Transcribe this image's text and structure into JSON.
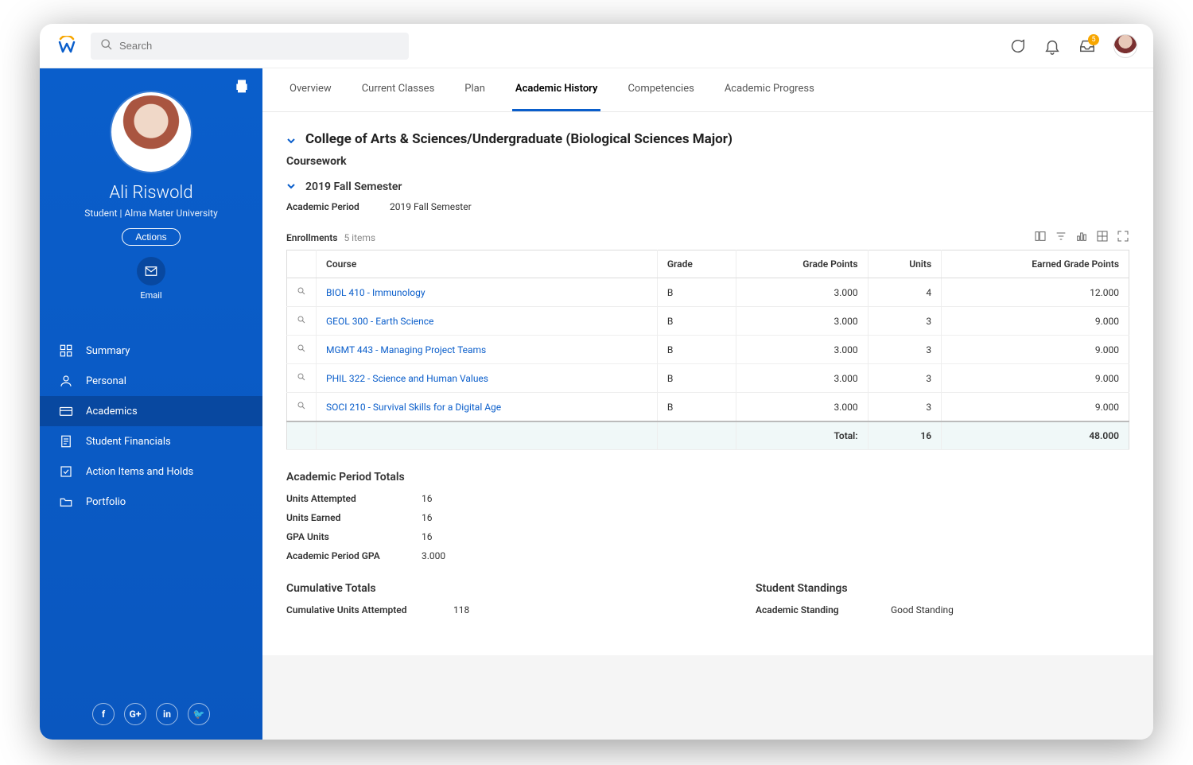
{
  "colors": {
    "sidebar_bg": "#0a5cc7",
    "sidebar_active": "#0848a0",
    "accent": "#0a5ecb",
    "badge": "#f7a600",
    "total_row_bg": "#f0f8f8"
  },
  "topbar": {
    "search_placeholder": "Search",
    "inbox_badge": "5"
  },
  "profile": {
    "name": "Ali Riswold",
    "subtitle": "Student | Alma Mater University",
    "actions_label": "Actions",
    "email_label": "Email"
  },
  "nav": {
    "items": [
      {
        "label": "Summary"
      },
      {
        "label": "Personal"
      },
      {
        "label": "Academics"
      },
      {
        "label": "Student Financials"
      },
      {
        "label": "Action Items and Holds"
      },
      {
        "label": "Portfolio"
      }
    ],
    "active_index": 2
  },
  "tabs": {
    "items": [
      {
        "label": "Overview"
      },
      {
        "label": "Current Classes"
      },
      {
        "label": "Plan"
      },
      {
        "label": "Academic History"
      },
      {
        "label": "Competencies"
      },
      {
        "label": "Academic Progress"
      }
    ],
    "active_index": 3
  },
  "heading": "College of Arts & Sciences/Undergraduate (Biological Sciences Major)",
  "coursework_label": "Coursework",
  "semester_label": "2019 Fall Semester",
  "academic_period": {
    "k": "Academic Period",
    "v": "2019 Fall Semester"
  },
  "enrollments": {
    "label": "Enrollments",
    "count": "5 items",
    "columns": [
      "",
      "Course",
      "Grade",
      "Grade Points",
      "Units",
      "Earned Grade Points"
    ],
    "rows": [
      {
        "course": "BIOL 410 - Immunology",
        "grade": "B",
        "grade_points": "3.000",
        "units": "4",
        "earned": "12.000"
      },
      {
        "course": "GEOL 300 - Earth Science",
        "grade": "B",
        "grade_points": "3.000",
        "units": "3",
        "earned": "9.000"
      },
      {
        "course": "MGMT 443 - Managing Project Teams",
        "grade": "B",
        "grade_points": "3.000",
        "units": "3",
        "earned": "9.000"
      },
      {
        "course": "PHIL 322 - Science and Human Values",
        "grade": "B",
        "grade_points": "3.000",
        "units": "3",
        "earned": "9.000"
      },
      {
        "course": "SOCI 210 - Survival Skills for a Digital Age",
        "grade": "B",
        "grade_points": "3.000",
        "units": "3",
        "earned": "9.000"
      }
    ],
    "total": {
      "label": "Total:",
      "units": "16",
      "earned": "48.000"
    }
  },
  "period_totals": {
    "heading": "Academic Period Totals",
    "rows": [
      {
        "k": "Units Attempted",
        "v": "16"
      },
      {
        "k": "Units Earned",
        "v": "16"
      },
      {
        "k": "GPA Units",
        "v": "16"
      },
      {
        "k": "Academic Period GPA",
        "v": "3.000"
      }
    ]
  },
  "cumulative": {
    "heading": "Cumulative Totals",
    "rows": [
      {
        "k": "Cumulative Units Attempted",
        "v": "118"
      }
    ]
  },
  "standings": {
    "heading": "Student Standings",
    "rows": [
      {
        "k": "Academic Standing",
        "v": "Good Standing"
      }
    ]
  },
  "social": [
    "f",
    "G+",
    "in",
    "🐦"
  ]
}
